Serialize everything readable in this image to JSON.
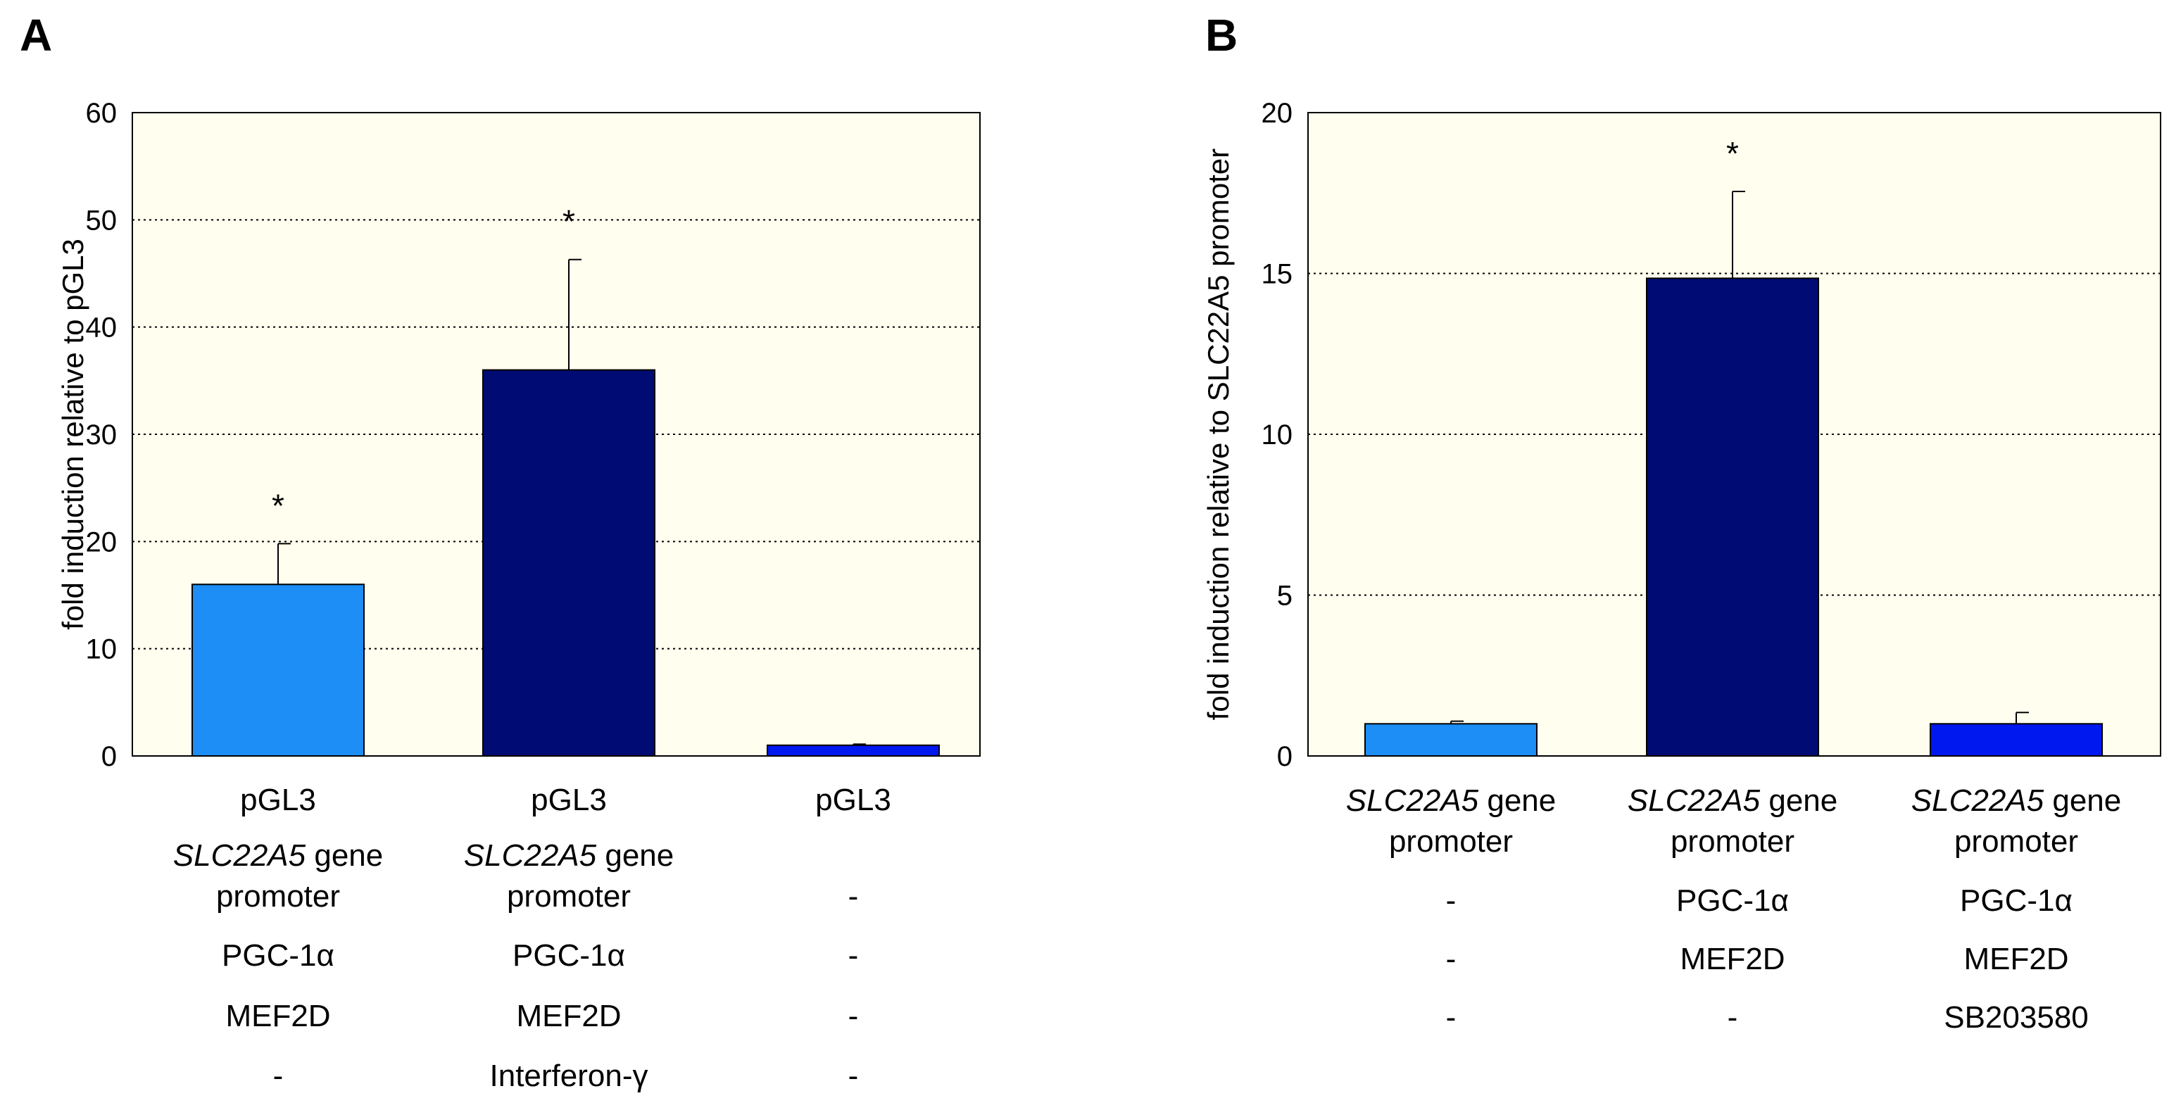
{
  "chart_data": [
    {
      "panel": "A",
      "type": "bar",
      "ylabel": "fold induction relative to pGL3",
      "ylim": [
        0,
        60
      ],
      "yticks": [
        "0",
        "10",
        "20",
        "30",
        "40",
        "50",
        "60"
      ],
      "grid": true,
      "bars": [
        {
          "value": 16.0,
          "error": 3.8,
          "color": "#1C8EF6",
          "star": "*",
          "rows": [
            [
              {
                "t": "pGL3"
              }
            ],
            [
              {
                "t": "SLC22A5",
                "i": true
              },
              {
                "t": " gene"
              }
            ],
            [
              {
                "t": "promoter"
              }
            ],
            [
              {
                "t": "PGC-1α"
              }
            ],
            [
              {
                "t": "MEF2D"
              }
            ],
            [
              {
                "t": "-"
              }
            ]
          ]
        },
        {
          "value": 36.0,
          "error": 10.3,
          "color": "#000C73",
          "star": "*",
          "rows": [
            [
              {
                "t": "pGL3"
              }
            ],
            [
              {
                "t": "SLC22A5",
                "i": true
              },
              {
                "t": " gene"
              }
            ],
            [
              {
                "t": "promoter"
              }
            ],
            [
              {
                "t": "PGC-1α"
              }
            ],
            [
              {
                "t": "MEF2D"
              }
            ],
            [
              {
                "t": "Interferon-γ"
              }
            ]
          ]
        },
        {
          "value": 1.0,
          "error": 0.1,
          "color": "#0018F0",
          "star": "",
          "rows": [
            [
              {
                "t": "pGL3"
              }
            ],
            [],
            [
              {
                "t": "-"
              }
            ],
            [
              {
                "t": "-"
              }
            ],
            [
              {
                "t": "-"
              }
            ],
            [
              {
                "t": "-"
              }
            ]
          ]
        }
      ]
    },
    {
      "panel": "B",
      "type": "bar",
      "ylabel": "fold induction relative to SLC22A5 promoter",
      "ylim": [
        0,
        20
      ],
      "yticks": [
        "0",
        "5",
        "10",
        "15",
        "20"
      ],
      "grid": true,
      "bars": [
        {
          "value": 1.0,
          "error": 0.08,
          "color": "#1C8EF6",
          "star": "",
          "rows": [
            [
              {
                "t": "SLC22A5",
                "i": true
              },
              {
                "t": " gene"
              }
            ],
            [
              {
                "t": "promoter"
              }
            ],
            [
              {
                "t": "-"
              }
            ],
            [
              {
                "t": "-"
              }
            ],
            [
              {
                "t": "-"
              }
            ]
          ]
        },
        {
          "value": 14.85,
          "error": 2.7,
          "color": "#000C73",
          "star": "*",
          "rows": [
            [
              {
                "t": "SLC22A5",
                "i": true
              },
              {
                "t": " gene"
              }
            ],
            [
              {
                "t": "promoter"
              }
            ],
            [
              {
                "t": "PGC-1α"
              }
            ],
            [
              {
                "t": "MEF2D"
              }
            ],
            [
              {
                "t": "-"
              }
            ]
          ]
        },
        {
          "value": 1.0,
          "error": 0.35,
          "color": "#0018F0",
          "star": "",
          "rows": [
            [
              {
                "t": "SLC22A5",
                "i": true
              },
              {
                "t": " gene"
              }
            ],
            [
              {
                "t": "promoter"
              }
            ],
            [
              {
                "t": "PGC-1α"
              }
            ],
            [
              {
                "t": "MEF2D"
              }
            ],
            [
              {
                "t": "SB203580"
              }
            ]
          ]
        }
      ]
    }
  ]
}
